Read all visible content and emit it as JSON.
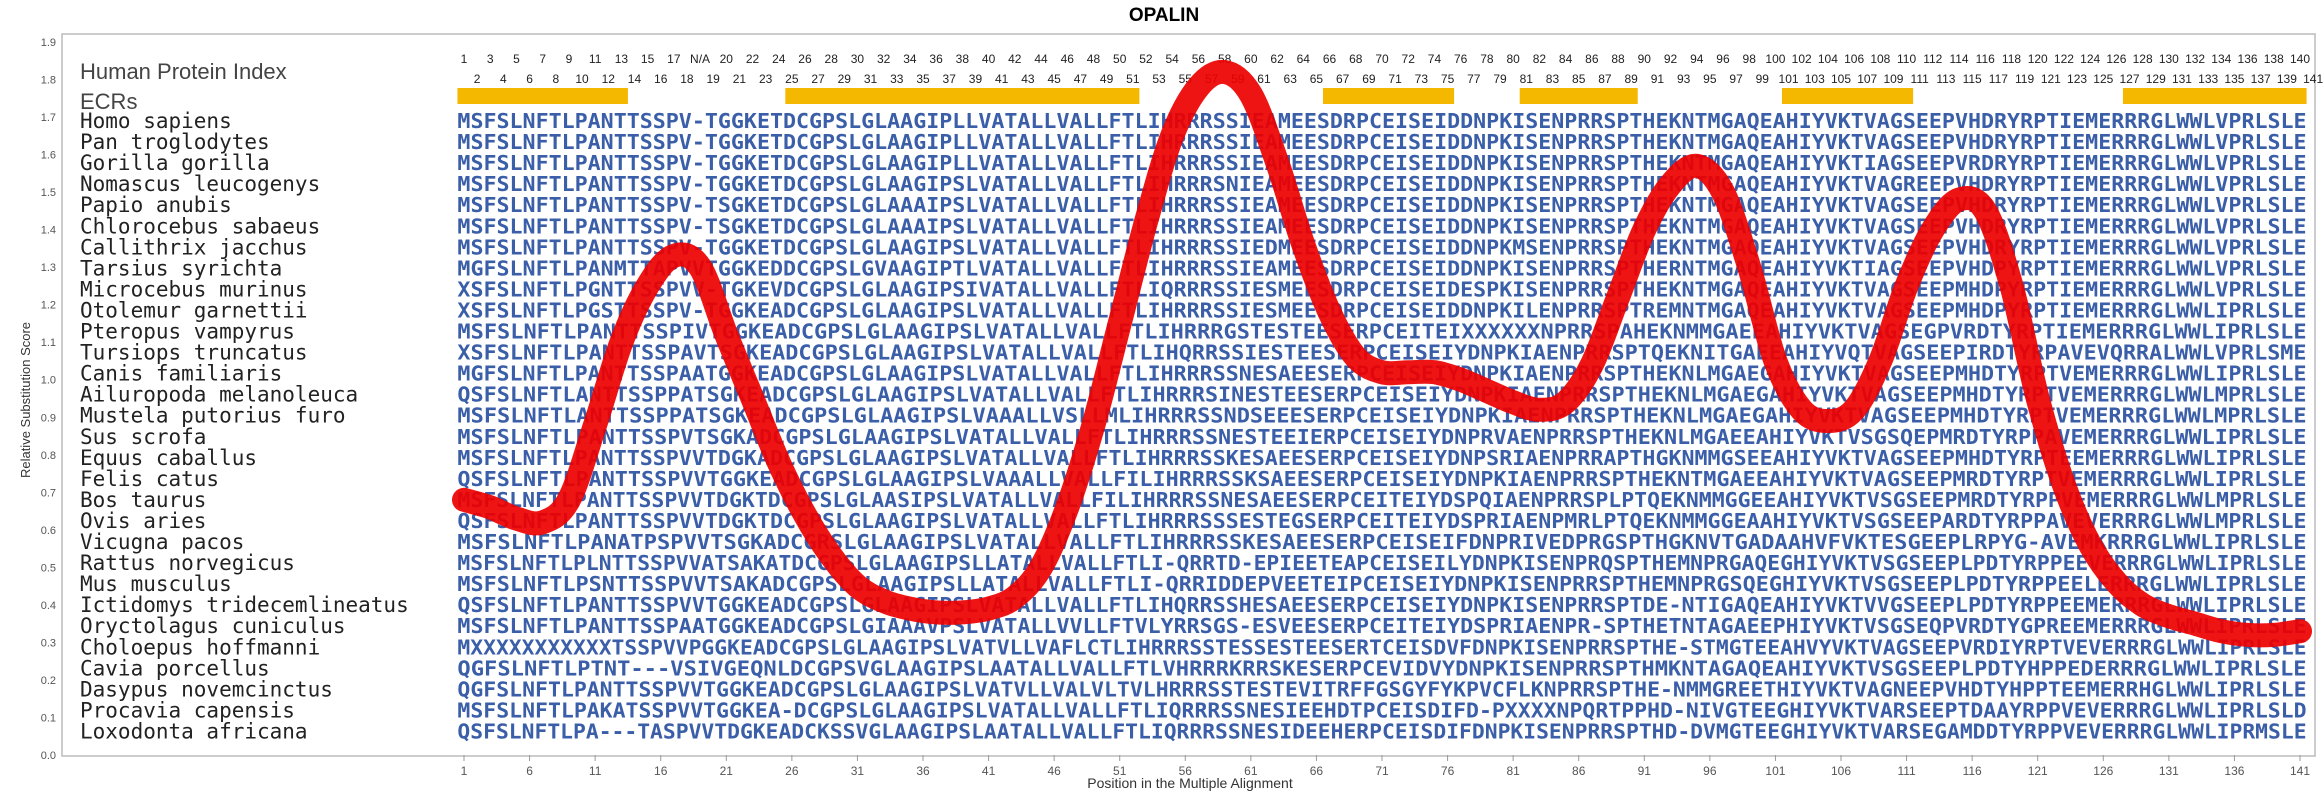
{
  "chart_data": {
    "type": "line",
    "title": "OPALIN",
    "xlabel": "Position in the Multiple Alignment",
    "ylabel": "Relative Substitution Score",
    "index_label": "Human Protein Index",
    "ecr_label": "ECRs",
    "xlim": [
      1,
      141
    ],
    "ylim": [
      0.0,
      1.9
    ],
    "y_ticks": [
      "0.0",
      "0.1",
      "0.2",
      "0.3",
      "0.4",
      "0.5",
      "0.6",
      "0.7",
      "0.8",
      "0.9",
      "1.0",
      "1.1",
      "1.2",
      "1.3",
      "1.4",
      "1.5",
      "1.6",
      "1.7",
      "1.8",
      "1.9"
    ],
    "x_ticks": [
      "1",
      "6",
      "11",
      "16",
      "21",
      "26",
      "31",
      "36",
      "41",
      "46",
      "51",
      "56",
      "61",
      "66",
      "71",
      "76",
      "81",
      "86",
      "91",
      "96",
      "101",
      "106",
      "111",
      "116",
      "121",
      "126",
      "131",
      "136",
      "141"
    ],
    "human_index_top": [
      "1",
      "3",
      "5",
      "7",
      "9",
      "11",
      "13",
      "15",
      "17",
      "N/A",
      "20",
      "22",
      "24",
      "26",
      "28",
      "30",
      "32",
      "34",
      "36",
      "38",
      "40",
      "42",
      "44",
      "46",
      "48",
      "50",
      "52",
      "54",
      "56",
      "58",
      "60",
      "62",
      "64",
      "66",
      "68",
      "70",
      "72",
      "74",
      "76",
      "78",
      "80",
      "82",
      "84",
      "86",
      "88",
      "90",
      "92",
      "94",
      "96",
      "98",
      "100",
      "102",
      "104",
      "106",
      "108",
      "110",
      "112",
      "114",
      "116",
      "118",
      "120",
      "122",
      "124",
      "126",
      "128",
      "130",
      "132",
      "134",
      "136",
      "138",
      "140"
    ],
    "human_index_bottom": [
      "2",
      "4",
      "6",
      "8",
      "10",
      "12",
      "14",
      "16",
      "18",
      "19",
      "21",
      "23",
      "25",
      "27",
      "29",
      "31",
      "33",
      "35",
      "37",
      "39",
      "41",
      "43",
      "45",
      "47",
      "49",
      "51",
      "53",
      "55",
      "57",
      "59",
      "61",
      "63",
      "65",
      "67",
      "69",
      "71",
      "73",
      "75",
      "77",
      "79",
      "81",
      "83",
      "85",
      "87",
      "89",
      "91",
      "93",
      "95",
      "97",
      "99",
      "101",
      "103",
      "105",
      "107",
      "109",
      "111",
      "113",
      "115",
      "117",
      "119",
      "121",
      "123",
      "125",
      "127",
      "129",
      "131",
      "133",
      "135",
      "137",
      "139",
      "141"
    ],
    "ecr_regions": [
      [
        1,
        13
      ],
      [
        26,
        52
      ],
      [
        67,
        76
      ],
      [
        82,
        90
      ],
      [
        102,
        111
      ],
      [
        128,
        141
      ]
    ],
    "ecr_color": "#f5b800",
    "curve_color": "#ee0000",
    "series": [
      {
        "x": [
          1,
          3,
          5,
          7,
          9,
          11,
          13,
          15,
          17,
          19,
          21,
          23,
          25,
          27,
          29,
          31,
          33,
          35,
          37,
          39,
          41,
          43,
          45,
          47,
          49,
          51,
          53,
          55,
          57,
          59,
          61,
          63,
          65,
          67,
          69,
          71,
          73,
          75,
          77,
          79,
          81,
          83,
          85,
          87,
          89,
          91,
          93,
          95,
          97,
          99,
          101,
          103,
          105,
          107,
          109,
          111,
          113,
          115,
          117,
          119,
          121,
          123,
          125,
          127,
          129,
          131,
          133,
          135,
          137,
          139,
          141
        ],
        "values": [
          0.68,
          0.66,
          0.63,
          0.62,
          0.68,
          0.88,
          1.1,
          1.25,
          1.33,
          1.3,
          1.12,
          0.95,
          0.78,
          0.64,
          0.53,
          0.45,
          0.41,
          0.39,
          0.38,
          0.38,
          0.39,
          0.42,
          0.5,
          0.66,
          0.88,
          1.15,
          1.42,
          1.65,
          1.78,
          1.82,
          1.76,
          1.58,
          1.36,
          1.18,
          1.06,
          1.02,
          1.02,
          1.02,
          1.0,
          0.97,
          0.94,
          0.92,
          0.94,
          1.04,
          1.22,
          1.4,
          1.52,
          1.57,
          1.5,
          1.3,
          1.05,
          0.92,
          0.89,
          0.92,
          1.05,
          1.25,
          1.4,
          1.48,
          1.45,
          1.25,
          0.95,
          0.72,
          0.56,
          0.46,
          0.4,
          0.37,
          0.35,
          0.33,
          0.32,
          0.32,
          0.33
        ]
      }
    ],
    "rows": [
      {
        "species": "Homo sapiens",
        "seq": "MSFSLNFTLPANTTSSPV-TGGKETDCGPSLGLAAGIPLLVATALLVALLFTLIHRRRSSIEAMEESDRPCEISEIDDNPKISENPRRSPTHEKNTMGAQEAHIYVKTVAGSEEPVHDRYRPTIEMERRRGLWWLVPRLSLE"
      },
      {
        "species": "Pan troglodytes",
        "seq": "MSFSLNFTLPANTTSSPV-TGGKETDCGPSLGLAAGIPLLVATALLVALLFTLIHRRRSSIEAMEESDRPCEISEIDDNPKISENPRRSPTHEKNTMGAQEAHIYVKTVAGSEEPVHDRYRPTIEMERRRGLWWLVPRLSLE"
      },
      {
        "species": "Gorilla gorilla",
        "seq": "MSFSLNFTLPANTTSSPV-TGGKETDCGPSLGLAAGIPLLVATALLVALLFTLIHRRRSSIEAMEESDRPCEISEIDDNPKISENPRRSPTHEKNTMGAQEAHIYVKTIAGSEEPVRDRYRPTIEMERRRGLWWLVPRLSLE"
      },
      {
        "species": "Nomascus leucogenys",
        "seq": "MSFSLNFTLPANTTSSPV-TGGKETDCGPSLGLAAGIPSLVATALLVALLFTLIHRRRSNIEAMEESDRPCEISEIDDNPKISENPRRSPTHEKNTMGAQEAHIYVKTVAGREEPVHDRYRPTIEMERRRGLWWLVPRLSLE"
      },
      {
        "species": "Papio anubis",
        "seq": "MSFSLNFTLPANTTSSPV-TSGKETDCGPSLGLAAAIPSLVATALLVALLFTLIHRRRSSIEAMEESDRPCEISEIDDNPKISENPRRSPTHEKNTMGAQEAHIYVKTVAGSEEPVHDRYRPTIEMERRRGLWWLVPRLSLE"
      },
      {
        "species": "Chlorocebus sabaeus",
        "seq": "MSFSLNFTLPANTTSSPV-TSGKETDCGPSLGLAAAIPSLVATALLVALLFTLIHRRRSSIEAMEESDRPCEISEIDDNPKISENPRRSPTHEKNTMGAQEAHIYVKTVAGSEEPVHDRYRPTIEMERRRGLWWLVPRLSLE"
      },
      {
        "species": "Callithrix jacchus",
        "seq": "MSFSLNFTLPANTTSSPV-TGGKETDCGPSLGLAAGIPSLVATALLVALLFTLIHRRRSSIEDMEESDRPCEISEIDDNPKMSENPRRSPTHEKNTMGAQEAHIYVKTVAGSEEPVHDRYRPTIEMERRRGLWWLVPRLSLE"
      },
      {
        "species": "Tarsius syrichta",
        "seq": "MGFSLNFTLPANMTTAPVVTGGKEDDCGPSLGVAAGIPTLVATALLVALLFTLIHRRRSSIEAMEESDRPCEISEIDDNPKISENPRRSPTHERNTMGAQEAHIYVKTIAGSEEPVHDPYRPTIEMERRRGLWWLVPRLSLE"
      },
      {
        "species": "Microcebus murinus",
        "seq": "XSFSLNFTLPGNTTSSPVV-TGKEVDCGPSLGLAAGIPSIVATALLVALLFTLIQRRRSSIESMEESDRPCEISEIDESPKISENPRRSPTHEKNTMGAQEAHIYVKTVAGSEEPMHDPYRPTIEMERRRGLWWLVPRLSLE"
      },
      {
        "species": "Otolemur garnettii",
        "seq": "XSFSLNFTLPGSTTSSPV-TGGKEADCGPSLGLAAGIPSLVATALLVALLFTLIHRRRSSIESMEESDRPCEISEIDDNPKILENPRRSPTREMNTMGAQEAHIYVKTVAGSEEPMHDPYRPTIEMERRRGLWWLIPRLSLE"
      },
      {
        "species": "Pteropus vampyrus",
        "seq": "MSFSLNFTLPANTTSSPIVTGGKEADCGPSLGLAAGIPSLVATALLVALLFTLIHRRRGSTESTEESERPCEITEIXXXXXXNPRRSPAHEKNMMGAEEAHIYVKTVAGSEGPVRDTYRPTIEMERRRGLWWLIPRLSLE"
      },
      {
        "species": "Tursiops truncatus",
        "seq": "XSFSLNFTLPANTTSSPAVTSGKEADCGPSLGLAAGIPSLVATALLVALLFTLIHQRRSSIESTEESERPCEISEIYDNPKIAENPRRSPTQEKNITGAEEAHIYVQTVAGSEEPIRDTYRPAVEVQRRALWWLVPRLSME"
      },
      {
        "species": "Canis familiaris",
        "seq": "MGFSLNFTLPANTTSSPAATGGKEADCGPSLGLAAGIPSLVATALLVALLFTLIHRRRSSNESAEESERPCEISEIYDNPKIAENPRRSPTHEKNLMGAEGAHIYVKTVAGSEEPMHDTYRPTVEMERRRGLWWLIPRLSLE"
      },
      {
        "species": "Ailuropoda melanoleuca",
        "seq": "QSFSLNFTLANTTSSPPATSGKEADCGPSLGLAAGIPSLVATALLVALLFTLIHRRRSINESTEESERPCEISEIYDNPKIAENPRRSPTHEKNLMGAEGAHIYVKTVAGSEEPMHDTYRPTVEMERRRGLWWLMPRLSLE"
      },
      {
        "species": "Mustela putorius furo",
        "seq": "MSFSLNFTLANTTSSPPATSGKEADCGPSLGLAAGIPSLVAAALLVSLLMLIHRRRSSNDSEEESERPCEISEIYDNPKIAENPRRSPTHEKNLMGAEGAHIYVKTVAGSEEPMHDTYRPTVEMERRRGLWWLMPRLSLE"
      },
      {
        "species": "Sus scrofa",
        "seq": "MSFSLNFTLPANTTSSPVTSGKADCGPSLGLAAGIPSLVATALLVALLFTLIHRRRSSNESTEEIERPCEISEIYDNPRVAENPRRSPTHEKNLMGAEEAHIYVKTVSGSQEPMRDTYRPPAVEMERRRGLWWLIPRLSLE"
      },
      {
        "species": "Equus caballus",
        "seq": "MSFSLNFTLPANTTSSPVVTDGKADCGPSLGLAAGIPSLVATALLVALLFTLIHRRRSSKESAEESERPCEISEIYDNPSRIAENPRRAPTHGKNMMGSEEAHIYVKTVAGSEEPMHDTYRPTEEMERRRGLWWLIPRLSLE"
      },
      {
        "species": "Felis catus",
        "seq": "QSFSLNFTLPANTTSSPVVTGGKEADCGPSLGLAAGIPSLVAAALLVALLFILIHRRRSSKSAEESERPCEISEIYDNPKIAENPRRSPTHEKNTMGAEEAHIYVKTVAGSEEPMRDTYRPTVEMERRRGLWWLIPRLSLE"
      },
      {
        "species": "Bos taurus",
        "seq": "MSFSLNFTLPANTTSSPVVTDGKTDCGPSLGLAASIPSLVATALLVALLFILIHRRRSSNESAEESERPCEITEIYDSPQIAENPRRSPLPTQEKNMMGGEEAHIYVKTVSGSEEPMRDTYRPPVEMERRRGLWWLMPRLSLE"
      },
      {
        "species": "Ovis aries",
        "seq": "QSFSLNFTLPANTTSSPVVTDGKTDCGPSLGLAAGIPSLVATALLVALLFTLIHRRRSSSESTEGSERPCEITEIYDSPRIAENPMRLPTQEKNMMGGEAAHIYVKTVSGSEEPARDTYRPPAVEVERRRGLWWLMPRLSLE"
      },
      {
        "species": "Vicugna pacos",
        "seq": "MSFSLNFTLPANATPSPVVTSGKADCGRSLGLAAGIPSLVATALLVALLFTLIHRRRSSKESAEESERPCEISEIFDNPRIVEDPRGSPTHGKNVTGADAAHVFVKTESGEEPLRPYG-AVEMKRRRGLWWLIPRLSLE"
      },
      {
        "species": "Rattus norvegicus",
        "seq": "MSFSLNFTLPLNTTSSPVVATSAKATDCGPSLGLAAGIPSLLATALLVALLFTLI-QRRTD-EPIEETEAPCEISEILYDNPKISENPRQSPTHEMNPRGAQEGHIYVKTVSGSEEPLPDTYRPPEEVERRRGLWWLIPRLSLE"
      },
      {
        "species": "Mus musculus",
        "seq": "MSFSLNFTLPSNTTSSPVVTSAKADCGPSLGLAAGIPSLLATALLVALLFTLI-QRRIDDEPVEETEIPCEISEIYDNPKISENPRRSPTHEMNPRGSQEGHIYVKTVSGSEEPLPDTYRPPEELERRRGLWWLIPRLSLE"
      },
      {
        "species": "Ictidomys tridecemlineatus",
        "seq": "QSFSLNFTLPANTTSSPVVTGGKEADCGPSLGLAAGIPSLVATALLVALLFTLIHQRRSSHESAEESERPCEISEIYDNPKISENPRRSPTDE-NTIGAQEAHIYVKTVVGSEEPLPDTYRPPEEMERRRGLWWLIPRLSLE"
      },
      {
        "species": "Oryctolagus cuniculus",
        "seq": "MSFSLNFTLPANTTSSPAATGGKEADCGPSLGIAAAVPSLVATALLVVLLFTVLYRRSGS-ESVEESERPCEITEIYDSPRIAENPR-SPTHETNTAGAEEPHIYVKTVSGSEQPVRDTYGPREEMERRRGLWWLIPRLSLE"
      },
      {
        "species": "Choloepus hoffmanni",
        "seq": "MXXXXXXXXXXXTSSPVVPGGKEADCGPSLGLAAGIPSLVATVLLVAFLCTLIHRRRSSTESSESTEESERTCEISDVFDNPKISENPRRSPTHE-STMGTEEAHVYVKTVAGSEEPVRDIYRPTVEVERRRGLWWLIPRLSLE"
      },
      {
        "species": "Cavia porcellus",
        "seq": "QGFSLNFTLPTNT---VSIVGEQNLDCGPSVGLAAGIPSLAATALLVALLFTLVHRRRKRRSKESERPCEVIDVYDNPKISENPRRSPTHMKNTAGAQEAHIYVKTVSGSEEPLPDTYHPPEDERRRGLWWLIPRLSLE"
      },
      {
        "species": "Dasypus novemcinctus",
        "seq": "QGFSLNFTLPANTTSSPVVTGGKEADCGPSLGLAAGIPSLVATVLLVALVLTVLHRRRSSTESTEVITRFFGSGYFYKPVCFLKNPRRSPTHE-NMMGREETHIYVKTVAGNEEPVHDTYHPPTEEMERRHGLWWLIPRLSLE"
      },
      {
        "species": "Procavia capensis",
        "seq": "MSFSLNFTLPAKATSSPVVTGGKEA-DCGPSLGLAAGIPSLVATALLVALLFTLIQRRRSSNESIEEHDTPCEISDIFD-PXXXXNPQRTPPHD-NIVGTEEGHIYVKTVARSEEPTDAAYRPPVEVERRRGLWWLIPRLSLD"
      },
      {
        "species": "Loxodonta africana",
        "seq": "QSFSLNFTLPA---TASPVVTDGKEADCKSSVGLAAGIPSLAATALLVALLFTLIQRRRSSNESIDEEHERPCEISDIFDNPKISENPRRSPTHD-DVMGTEEGHIYVKTVARSEGAMDDTYRPPVEVERRRGLWWLIPRMSLE"
      }
    ]
  }
}
